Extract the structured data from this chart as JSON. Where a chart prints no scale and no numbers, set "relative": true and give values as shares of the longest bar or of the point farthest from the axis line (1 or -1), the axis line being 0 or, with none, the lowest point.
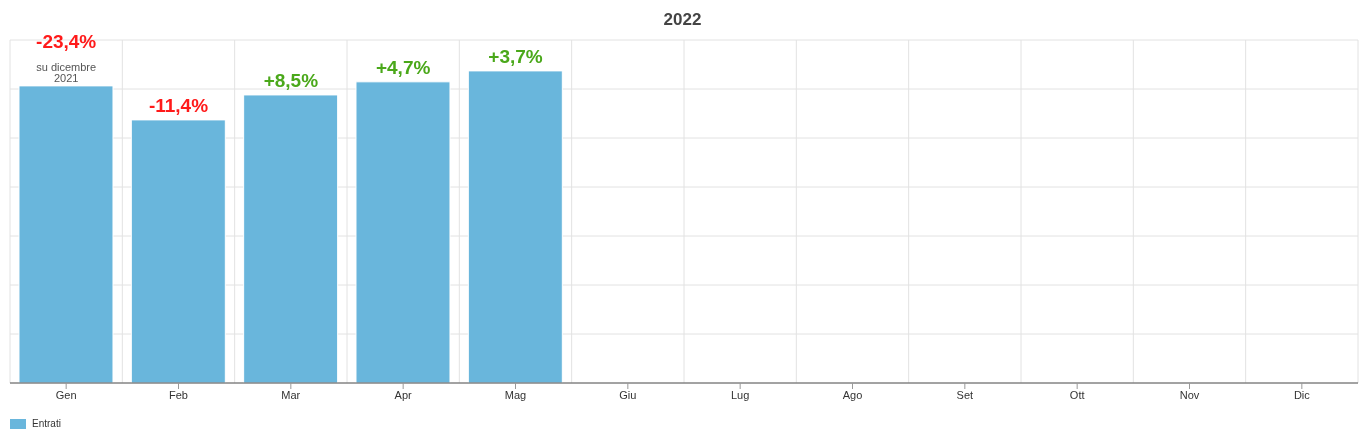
{
  "chart_data": {
    "type": "bar",
    "title": "2022",
    "relative": true,
    "categories": [
      "Gen",
      "Feb",
      "Mar",
      "Apr",
      "Mag",
      "Giu",
      "Lug",
      "Ago",
      "Set",
      "Ott",
      "Nov",
      "Dic"
    ],
    "series": [
      {
        "name": "Entrati",
        "color": "#69b6dc",
        "values": [
          0.952,
          0.843,
          0.923,
          0.965,
          1,
          null,
          null,
          null,
          null,
          null,
          null,
          null
        ]
      }
    ],
    "annotations": [
      {
        "text": "-23,4%",
        "x": "Gen",
        "y": 0.952
      },
      {
        "text": "su dicembre 2021",
        "x": "Gen",
        "y": 0.952
      },
      {
        "text": "-11,4%",
        "x": "Feb",
        "y": 0.843
      },
      {
        "text": "+8,5%",
        "x": "Mar",
        "y": 0.923
      },
      {
        "text": "+4,7%",
        "x": "Apr",
        "y": 0.965
      },
      {
        "text": "+3,7%",
        "x": "Mag",
        "y": 1
      }
    ],
    "grid": true,
    "legend": "bottom left"
  }
}
